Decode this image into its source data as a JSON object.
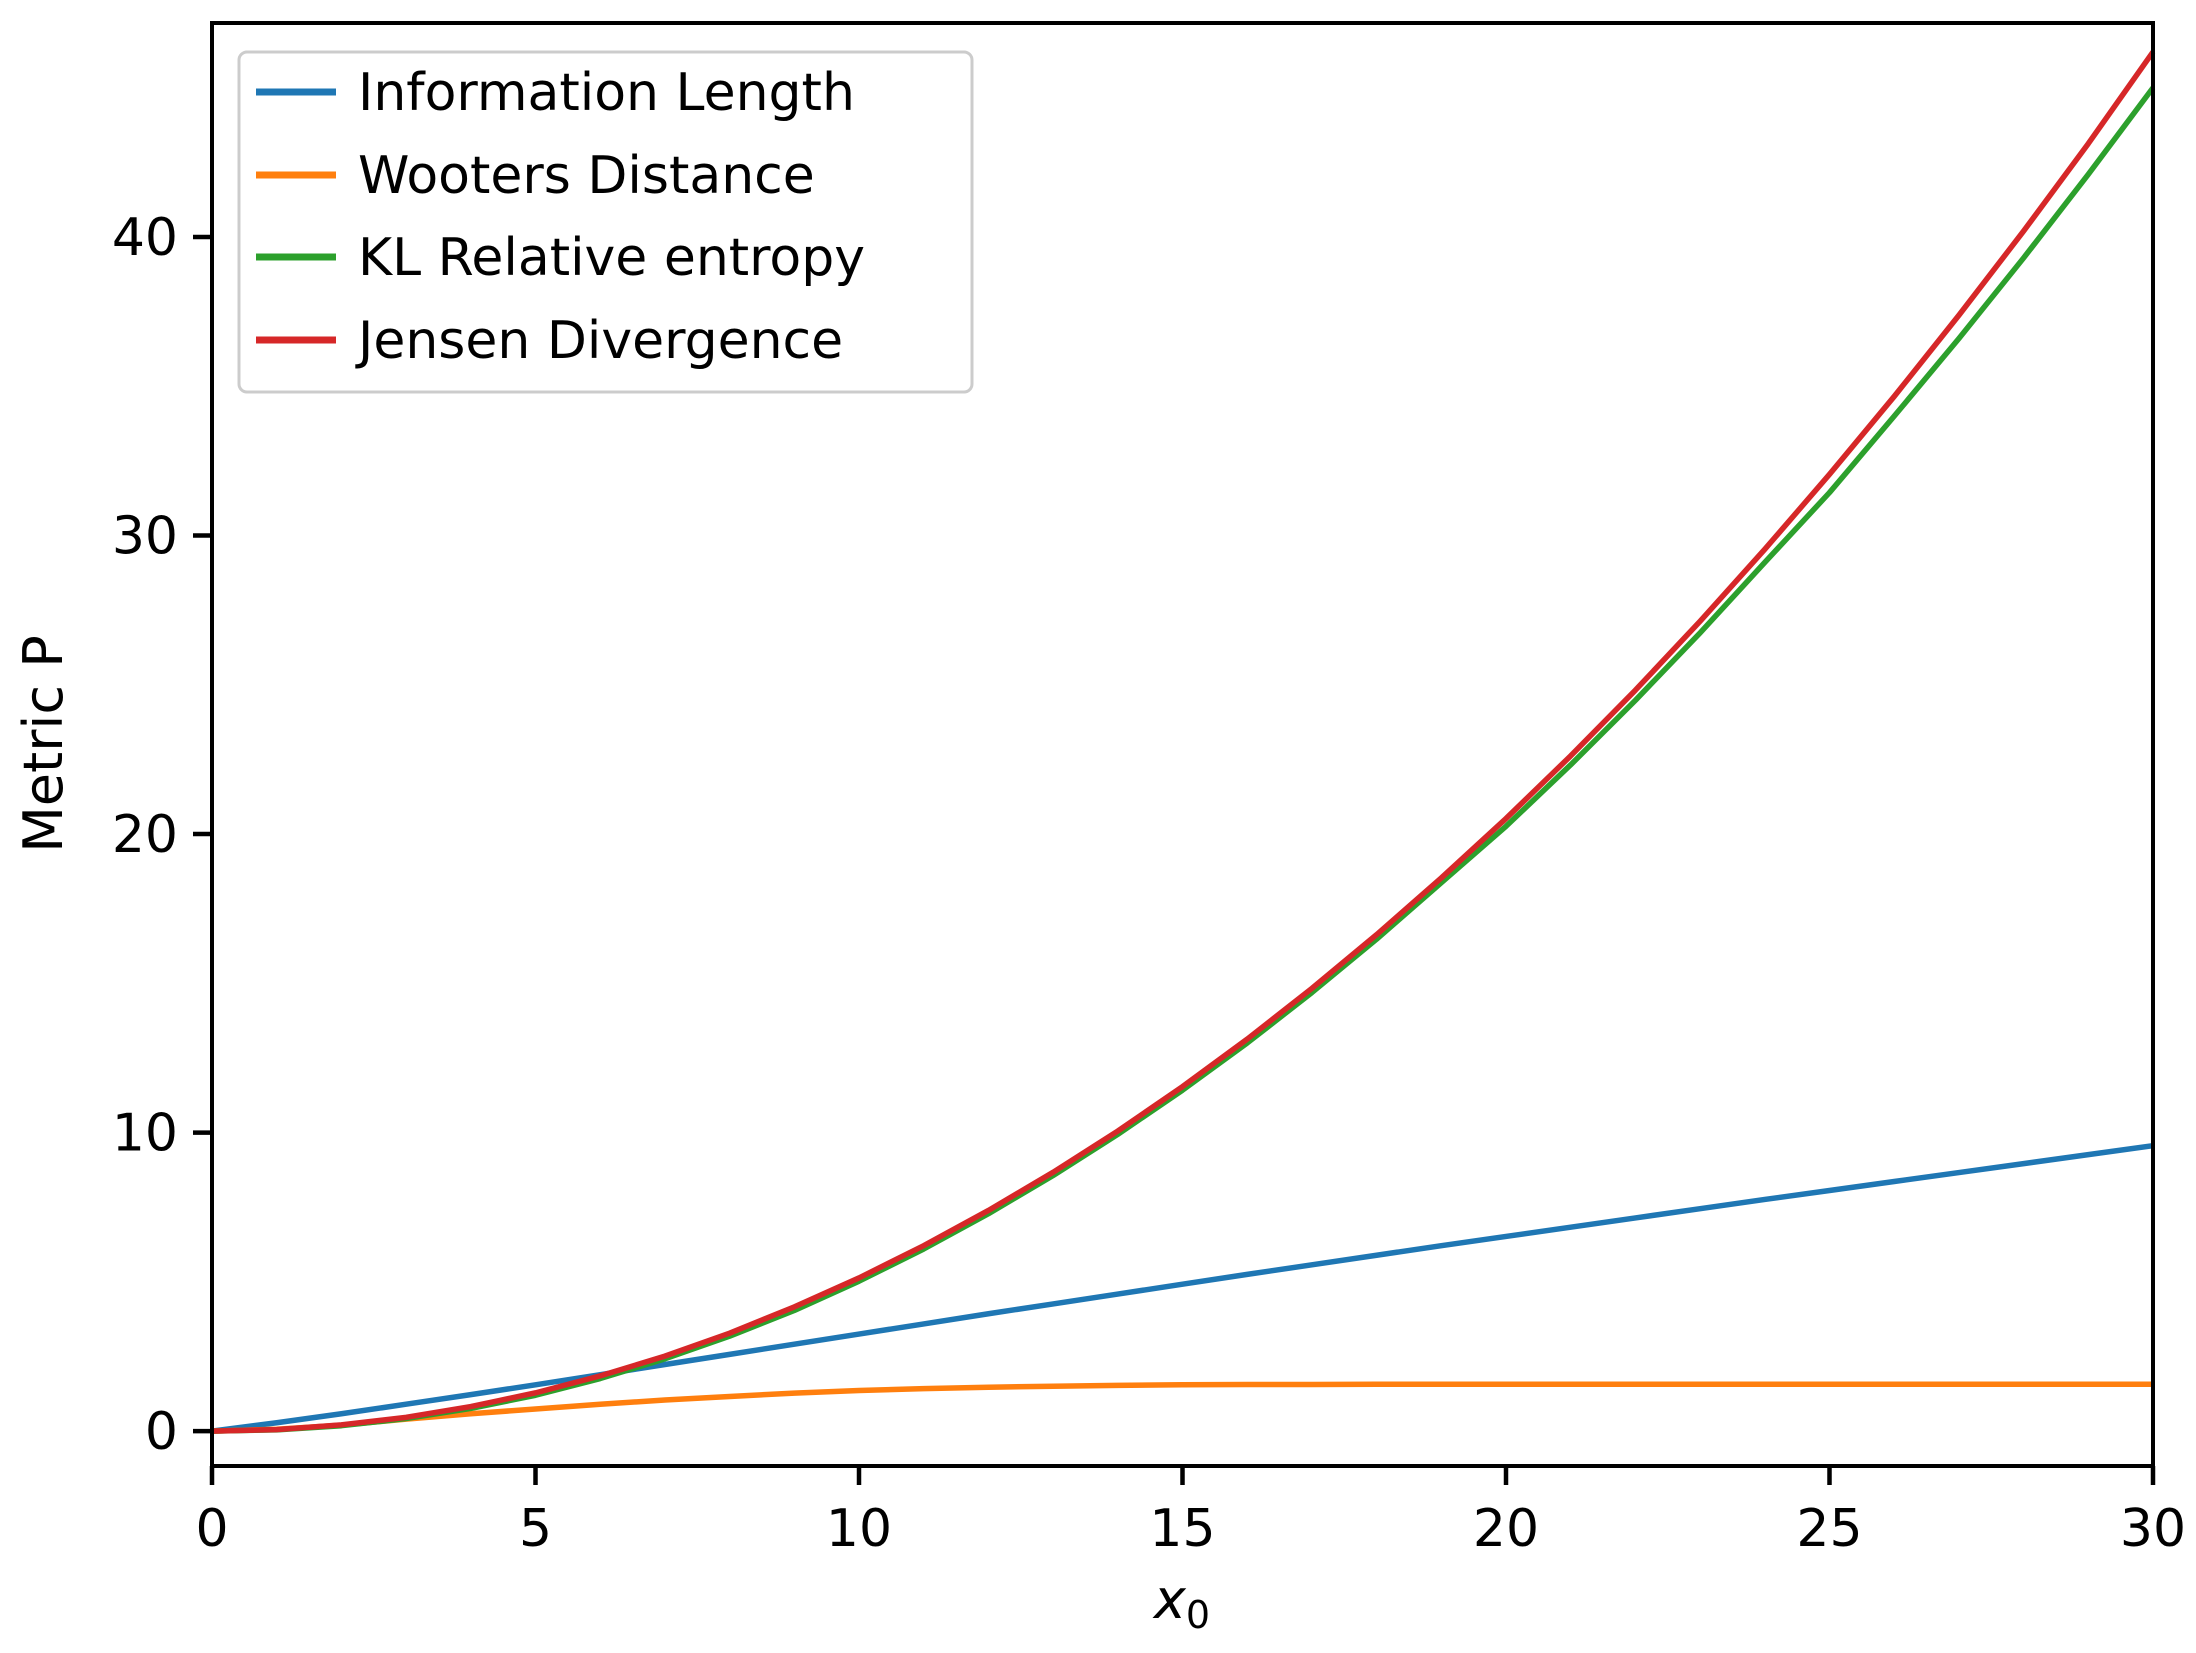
{
  "chart_data": {
    "type": "line",
    "title": "",
    "xlabel_base": "x",
    "xlabel_sub": "0",
    "ylabel": "Metric P",
    "xlim": [
      0,
      30
    ],
    "ylim": [
      -1.17,
      47.17
    ],
    "x_ticks": [
      "0",
      "5",
      "10",
      "15",
      "20",
      "25",
      "30"
    ],
    "x_tick_values": [
      0,
      5,
      10,
      15,
      20,
      25,
      30
    ],
    "y_ticks": [
      "0",
      "10",
      "20",
      "30",
      "40"
    ],
    "y_tick_values": [
      0,
      10,
      20,
      30,
      40
    ],
    "grid": false,
    "legend_position": "upper left",
    "x": [
      0,
      1,
      2,
      3,
      4,
      5,
      6,
      7,
      8,
      9,
      10,
      11,
      12,
      13,
      14,
      15,
      16,
      17,
      18,
      19,
      20,
      21,
      22,
      23,
      24,
      25,
      26,
      27,
      28,
      29,
      30
    ],
    "series": [
      {
        "name": "Information Length",
        "color": "#1f77b4",
        "values": [
          0,
          0.28,
          0.58,
          0.9,
          1.22,
          1.55,
          1.89,
          2.23,
          2.57,
          2.91,
          3.25,
          3.59,
          3.93,
          4.26,
          4.59,
          4.92,
          5.25,
          5.57,
          5.89,
          6.21,
          6.52,
          6.83,
          7.14,
          7.45,
          7.76,
          8.06,
          8.36,
          8.66,
          8.96,
          9.26,
          9.56
        ]
      },
      {
        "name": "Wooters Distance",
        "color": "#ff7f0e",
        "values": [
          0,
          0.06,
          0.2,
          0.4,
          0.58,
          0.74,
          0.9,
          1.04,
          1.16,
          1.27,
          1.36,
          1.42,
          1.47,
          1.5,
          1.53,
          1.55,
          1.56,
          1.56,
          1.57,
          1.57,
          1.57,
          1.57,
          1.57,
          1.57,
          1.57,
          1.57,
          1.57,
          1.57,
          1.57,
          1.57,
          1.57
        ]
      },
      {
        "name": "KL Relative entropy",
        "color": "#2ca02c",
        "values": [
          0,
          0.04,
          0.18,
          0.42,
          0.76,
          1.2,
          1.76,
          2.42,
          3.18,
          4.04,
          5.02,
          6.1,
          7.28,
          8.56,
          9.94,
          11.42,
          13.0,
          14.69,
          16.48,
          18.37,
          20.26,
          22.32,
          24.48,
          26.74,
          29.1,
          31.44,
          34.0,
          36.6,
          39.3,
          42.1,
          45.0
        ]
      },
      {
        "name": "Jensen Divergence",
        "color": "#d62728",
        "values": [
          0,
          0.05,
          0.21,
          0.46,
          0.82,
          1.28,
          1.85,
          2.51,
          3.28,
          4.16,
          5.13,
          6.21,
          7.39,
          8.67,
          10.05,
          11.54,
          13.13,
          14.83,
          16.63,
          18.53,
          20.52,
          22.62,
          24.82,
          27.13,
          29.54,
          32.05,
          34.66,
          37.38,
          40.2,
          43.13,
          46.2
        ]
      }
    ]
  }
}
